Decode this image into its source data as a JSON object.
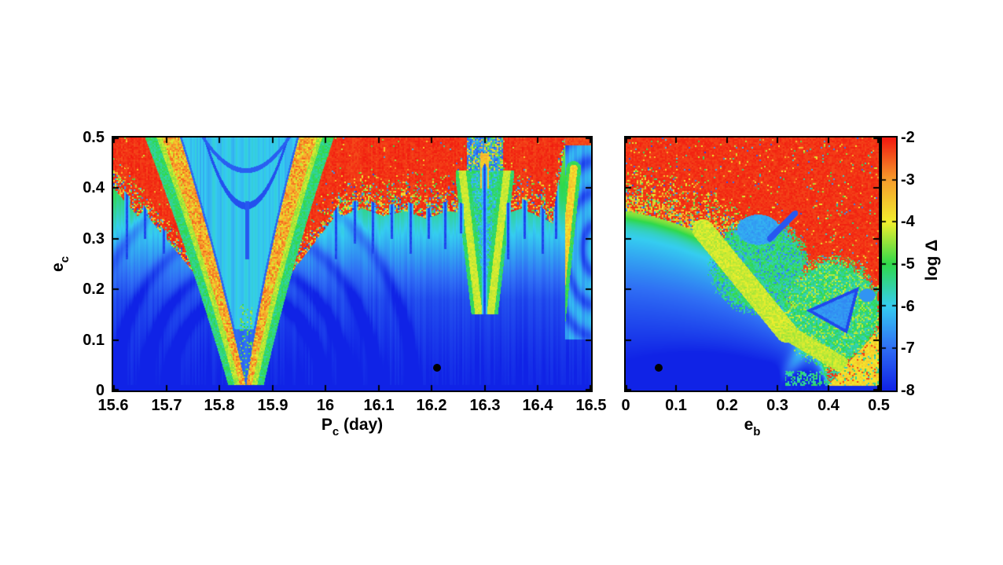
{
  "figure": {
    "background": "#ffffff",
    "description": "Two-panel dynamical stability heatmap with shared chaos-indicator colorbar"
  },
  "chart_data": {
    "type": "heatmap",
    "colorbar": {
      "label": "log Δ",
      "min": -8,
      "max": -2,
      "tick_labels": [
        "-2",
        "-3",
        "-4",
        "-5",
        "-6",
        "-7",
        "-8"
      ],
      "tick_values": [
        -2,
        -3,
        -4,
        -5,
        -6,
        -7,
        -8
      ],
      "palette": [
        {
          "v": -8,
          "color": "#1023e6"
        },
        {
          "v": -7,
          "color": "#2f6ef4"
        },
        {
          "v": -6,
          "color": "#35cdf0"
        },
        {
          "v": -5,
          "color": "#2fd94a"
        },
        {
          "v": -4,
          "color": "#f2ee2d"
        },
        {
          "v": -3,
          "color": "#f69d2c"
        },
        {
          "v": -2,
          "color": "#f2190f"
        }
      ]
    },
    "panels": [
      {
        "id": "left",
        "xlabel_main": "P",
        "xlabel_sub": "c",
        "xlabel_rest": " (day)",
        "ylabel_main": "e",
        "ylabel_sub": "c",
        "xrange": [
          15.6,
          16.5
        ],
        "yrange": [
          0,
          0.5
        ],
        "xtick_values": [
          15.6,
          15.7,
          15.8,
          15.9,
          16.0,
          16.1,
          16.2,
          16.3,
          16.4,
          16.5
        ],
        "xtick_labels": [
          "15.6",
          "15.7",
          "15.8",
          "15.9",
          "16",
          "16.1",
          "16.2",
          "16.3",
          "16.4",
          "16.5"
        ],
        "ytick_values": [
          0.5,
          0.4,
          0.3,
          0.2,
          0.1,
          0
        ],
        "ytick_labels": [
          "0.5",
          "0.4",
          "0.3",
          "0.2",
          "0.1",
          "0"
        ],
        "marker": {
          "x": 16.21,
          "y": 0.045,
          "color": "#000000"
        },
        "chaos_boundary": [
          [
            15.6,
            0.4
          ],
          [
            15.645,
            0.345
          ],
          [
            15.68,
            0.372
          ],
          [
            15.715,
            0.315
          ],
          [
            15.76,
            0.33
          ],
          [
            15.8,
            0.345
          ],
          [
            15.9,
            0.34
          ],
          [
            15.96,
            0.35
          ],
          [
            16.0,
            0.373
          ],
          [
            16.03,
            0.345
          ],
          [
            16.07,
            0.36
          ],
          [
            16.11,
            0.345
          ],
          [
            16.15,
            0.355
          ],
          [
            16.19,
            0.34
          ],
          [
            16.23,
            0.355
          ],
          [
            16.26,
            0.35
          ],
          [
            16.3,
            0.43
          ],
          [
            16.34,
            0.35
          ],
          [
            16.37,
            0.36
          ],
          [
            16.4,
            0.345
          ],
          [
            16.43,
            0.33
          ],
          [
            16.452,
            0.49
          ],
          [
            16.5,
            0.49
          ]
        ],
        "resonance": {
          "center": 15.85,
          "vertex_e": 0.0
        },
        "spikes": [
          [
            15.625,
            0.26
          ],
          [
            15.66,
            0.3
          ],
          [
            15.695,
            0.27
          ],
          [
            15.73,
            0.3
          ],
          [
            16.02,
            0.26
          ],
          [
            16.055,
            0.29
          ],
          [
            16.09,
            0.27
          ],
          [
            16.125,
            0.3
          ],
          [
            16.16,
            0.27
          ],
          [
            16.195,
            0.3
          ],
          [
            16.225,
            0.28
          ],
          [
            16.255,
            0.31
          ],
          [
            16.3,
            0.145
          ],
          [
            16.345,
            0.26
          ],
          [
            16.375,
            0.3
          ],
          [
            16.41,
            0.27
          ],
          [
            16.435,
            0.3
          ]
        ],
        "chevron": {
          "center": 16.3,
          "vertex_e": 0.15,
          "top_e": 0.435
        },
        "edge_feature": {
          "center_x": 16.505,
          "center_e": 0.28
        }
      },
      {
        "id": "right",
        "xlabel_main": "e",
        "xlabel_sub": "b",
        "xrange": [
          0,
          0.5
        ],
        "yrange": [
          0,
          0.5
        ],
        "xtick_values": [
          0,
          0.1,
          0.2,
          0.3,
          0.4,
          0.5
        ],
        "xtick_labels": [
          "0",
          "0.1",
          "0.2",
          "0.3",
          "0.4",
          "0.5"
        ],
        "ytick_values": [
          0.5,
          0.4,
          0.3,
          0.2,
          0.1,
          0
        ],
        "marker": {
          "x": 0.065,
          "y": 0.045,
          "color": "#000000"
        },
        "chaos_boundary": [
          [
            0.0,
            0.355
          ],
          [
            0.05,
            0.345
          ],
          [
            0.1,
            0.33
          ],
          [
            0.15,
            0.31
          ],
          [
            0.2,
            0.285
          ],
          [
            0.25,
            0.25
          ],
          [
            0.28,
            0.225
          ],
          [
            0.31,
            0.19
          ],
          [
            0.34,
            0.15
          ],
          [
            0.37,
            0.1
          ],
          [
            0.39,
            0.055
          ],
          [
            0.405,
            0.0
          ],
          [
            0.5,
            0.0
          ]
        ],
        "green_island_a": {
          "cx": 0.265,
          "cy": 0.245,
          "rx": 0.095,
          "ry": 0.09
        },
        "cyan_patch": {
          "cx": 0.262,
          "cy": 0.318,
          "rx": 0.042,
          "ry": 0.03
        },
        "yellow_band_1": [
          0.152,
          0.318,
          0.318,
          0.115
        ],
        "yellow_band_2": [
          0.318,
          0.115,
          0.425,
          0.052
        ],
        "green_island_b": {
          "cx": 0.41,
          "cy": 0.155,
          "rx": 0.095,
          "ry": 0.105
        },
        "blue_triangle": [
          [
            0.357,
            0.158
          ],
          [
            0.462,
            0.205
          ],
          [
            0.438,
            0.112
          ]
        ],
        "blue_blob": {
          "cx": 0.478,
          "cy": 0.188,
          "rx": 0.016,
          "ry": 0.013
        },
        "orange_corner": {
          "x0": 0.392,
          "slope": 0.9
        }
      }
    ]
  }
}
